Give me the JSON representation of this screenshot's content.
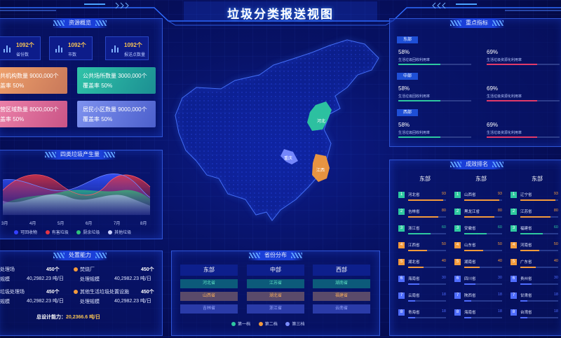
{
  "header": {
    "title": "垃圾分类报送视图"
  },
  "resource": {
    "title": "资源概览",
    "stats": [
      {
        "value": "1092个",
        "label": "省份数"
      },
      {
        "value": "1092个",
        "label": "市数"
      },
      {
        "value": "1092个",
        "label": "报送点数量"
      }
    ],
    "cards": [
      {
        "line1": "公共机构数量 9000,000个",
        "line2": "覆盖率 50%",
        "color": "#e3915b"
      },
      {
        "line1": "公共场所数量 3000,000个",
        "line2": "覆盖率 50%",
        "color": "#23a99a"
      },
      {
        "line1": "经营区域数量 8000,000个",
        "line2": "覆盖率 50%",
        "color": "#d86794"
      },
      {
        "line1": "居民小区数量 9000,000个",
        "line2": "覆盖率 50%",
        "color": "#5e73d9"
      }
    ]
  },
  "waste": {
    "title": "四类垃圾产生量",
    "xticks": [
      "3月",
      "4月",
      "5月",
      "6月",
      "7月",
      "8月"
    ],
    "legend": [
      {
        "name": "可回收物",
        "color": "#3340ff"
      },
      {
        "name": "有害垃圾",
        "color": "#e23645"
      },
      {
        "name": "厨余垃圾",
        "color": "#2ec27a"
      },
      {
        "name": "其他垃圾",
        "color": "#c9d0ff"
      }
    ]
  },
  "capacity": {
    "title": "处置能力",
    "items": [
      {
        "name": "焚烧处理场",
        "count": "450个",
        "scale_label": "处理规模",
        "scale": "40,2982.23 吨/日"
      },
      {
        "name": "焚烧厂",
        "count": "450个",
        "scale_label": "处理规模",
        "scale": "40,2982.23 吨/日"
      },
      {
        "name": "厨余垃圾处理场",
        "count": "450个",
        "scale_label": "处理规模",
        "scale": "40,2982.23 吨/日"
      },
      {
        "name": "其他生活垃圾处置设施",
        "count": "450个",
        "scale_label": "处理规模",
        "scale": "40,2982.23 吨/日"
      }
    ],
    "total_label": "总设计能力：",
    "total": "20,2366.6 吨/日"
  },
  "map": {
    "provinces": [
      {
        "name": "河北",
        "color": "#2ec9a0"
      },
      {
        "name": "重庆",
        "color": "#7a8cff"
      },
      {
        "name": "江西",
        "color": "#f39a3c"
      }
    ]
  },
  "distribution": {
    "title": "省份分布",
    "cols": [
      {
        "name": "东部",
        "cells": [
          {
            "t": "河北省",
            "c": "#2ec9a0"
          },
          {
            "t": "山西省",
            "c": "#f39a3c"
          },
          {
            "t": "吉林省",
            "c": "#7a8cff"
          }
        ]
      },
      {
        "name": "中部",
        "cells": [
          {
            "t": "江苏省",
            "c": "#2ec9a0"
          },
          {
            "t": "湖北省",
            "c": "#f39a3c"
          },
          {
            "t": "浙江省",
            "c": "#7a8cff"
          }
        ]
      },
      {
        "name": "西部",
        "cells": [
          {
            "t": "湖南省",
            "c": "#2ec9a0"
          },
          {
            "t": "福建省",
            "c": "#f39a3c"
          },
          {
            "t": "云南省",
            "c": "#7a8cff"
          }
        ]
      }
    ],
    "legend": [
      {
        "name": "第一档",
        "color": "#2ec9a0"
      },
      {
        "name": "第二档",
        "color": "#f39a3c"
      },
      {
        "name": "第三档",
        "color": "#7a8cff"
      }
    ]
  },
  "key": {
    "title": "重点指标",
    "sections": [
      {
        "name": "东部",
        "items": [
          {
            "pct": "58%",
            "desc": "生活垃圾回收利用率",
            "fill": 0.58,
            "color": "#2ec9a0"
          },
          {
            "pct": "69%",
            "desc": "生活垃圾资源化利用率",
            "fill": 0.69,
            "color": "#e23a6a"
          }
        ]
      },
      {
        "name": "中部",
        "items": [
          {
            "pct": "58%",
            "desc": "生活垃圾回收利用率",
            "fill": 0.58,
            "color": "#2ec9a0"
          },
          {
            "pct": "69%",
            "desc": "生活垃圾资源化利用率",
            "fill": 0.69,
            "color": "#e23a6a"
          }
        ]
      },
      {
        "name": "西部",
        "items": [
          {
            "pct": "58%",
            "desc": "生活垃圾回收利用率",
            "fill": 0.58,
            "color": "#2ec9a0"
          },
          {
            "pct": "69%",
            "desc": "生活垃圾资源化利用率",
            "fill": 0.69,
            "color": "#e23a6a"
          }
        ]
      }
    ]
  },
  "ranking": {
    "title": "成效排名",
    "cols": [
      {
        "name": "东部",
        "rows": [
          {
            "n": "1",
            "p": "河北省",
            "s": "93"
          },
          {
            "n": "2",
            "p": "吉林省",
            "s": "80"
          },
          {
            "n": "3",
            "p": "浙江省",
            "s": "60"
          },
          {
            "n": "4",
            "p": "江西省",
            "s": "50"
          },
          {
            "n": "5",
            "p": "湖北省",
            "s": "40"
          },
          {
            "n": "6",
            "p": "海南省",
            "s": "30"
          },
          {
            "n": "7",
            "p": "云南省",
            "s": "18"
          },
          {
            "n": "8",
            "p": "青海省",
            "s": "18"
          }
        ]
      },
      {
        "name": "东部",
        "rows": [
          {
            "n": "1",
            "p": "山西省",
            "s": "93"
          },
          {
            "n": "2",
            "p": "黑龙江省",
            "s": "80"
          },
          {
            "n": "3",
            "p": "安徽省",
            "s": "60"
          },
          {
            "n": "4",
            "p": "山东省",
            "s": "50"
          },
          {
            "n": "5",
            "p": "湖南省",
            "s": "40"
          },
          {
            "n": "6",
            "p": "四川省",
            "s": "30"
          },
          {
            "n": "7",
            "p": "陕西省",
            "s": "18"
          },
          {
            "n": "8",
            "p": "海南省",
            "s": "18"
          }
        ]
      },
      {
        "name": "东部",
        "rows": [
          {
            "n": "1",
            "p": "辽宁省",
            "s": "93"
          },
          {
            "n": "2",
            "p": "江苏省",
            "s": "80"
          },
          {
            "n": "3",
            "p": "福建省",
            "s": "60"
          },
          {
            "n": "4",
            "p": "河南省",
            "s": "50"
          },
          {
            "n": "5",
            "p": "广东省",
            "s": "40"
          },
          {
            "n": "6",
            "p": "贵州省",
            "s": "30"
          },
          {
            "n": "7",
            "p": "甘肃省",
            "s": "18"
          },
          {
            "n": "8",
            "p": "台湾省",
            "s": "18"
          }
        ]
      }
    ]
  }
}
